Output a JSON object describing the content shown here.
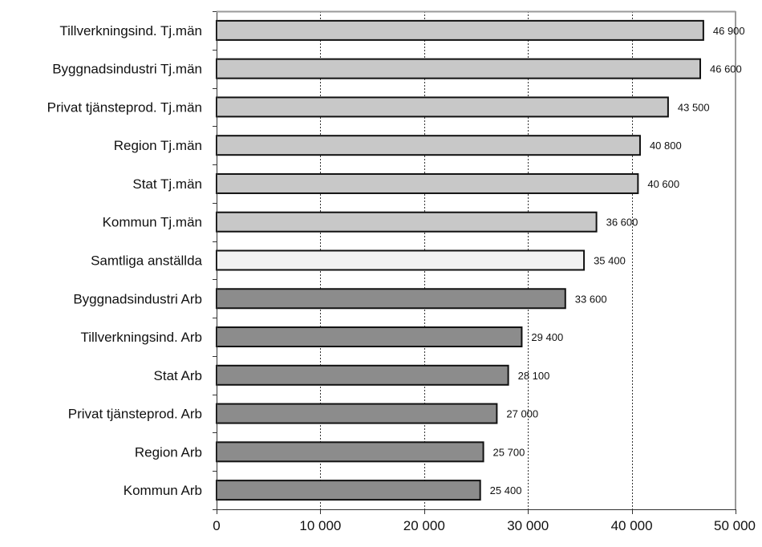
{
  "chart_data": {
    "type": "bar",
    "orientation": "horizontal",
    "categories": [
      "Tillverkningsind. Tj.män",
      "Byggnadsindustri Tj.män",
      "Privat tjänsteprod. Tj.män",
      "Region Tj.män",
      "Stat Tj.män",
      "Kommun Tj.män",
      "Samtliga anställda",
      "Byggnadsindustri Arb",
      "Tillverkningsind. Arb",
      "Stat Arb",
      "Privat tjänsteprod. Arb",
      "Region Arb",
      "Kommun Arb"
    ],
    "values": [
      46900,
      46600,
      43500,
      40800,
      40600,
      36600,
      35400,
      33600,
      29400,
      28100,
      27000,
      25700,
      25400
    ],
    "value_labels": [
      "46 900",
      "46 600",
      "43 500",
      "40 800",
      "40 600",
      "36 600",
      "35 400",
      "33 600",
      "29 400",
      "28 100",
      "27 000",
      "25 700",
      "25 400"
    ],
    "bar_colors": [
      "#c8c8c8",
      "#c8c8c8",
      "#c8c8c8",
      "#c8c8c8",
      "#c8c8c8",
      "#c8c8c8",
      "#f2f2f2",
      "#8c8c8c",
      "#8c8c8c",
      "#8c8c8c",
      "#8c8c8c",
      "#8c8c8c",
      "#8c8c8c"
    ],
    "bar_outline_color": "#111111",
    "x_ticks": [
      0,
      10000,
      20000,
      30000,
      40000,
      50000
    ],
    "x_tick_labels": [
      "0",
      "10 000",
      "20 000",
      "30 000",
      "40 000",
      "50 000"
    ],
    "xlim": [
      0,
      50000
    ],
    "title": "",
    "xlabel": "",
    "ylabel": "",
    "grid": "vertical dotted",
    "legend": "none"
  }
}
